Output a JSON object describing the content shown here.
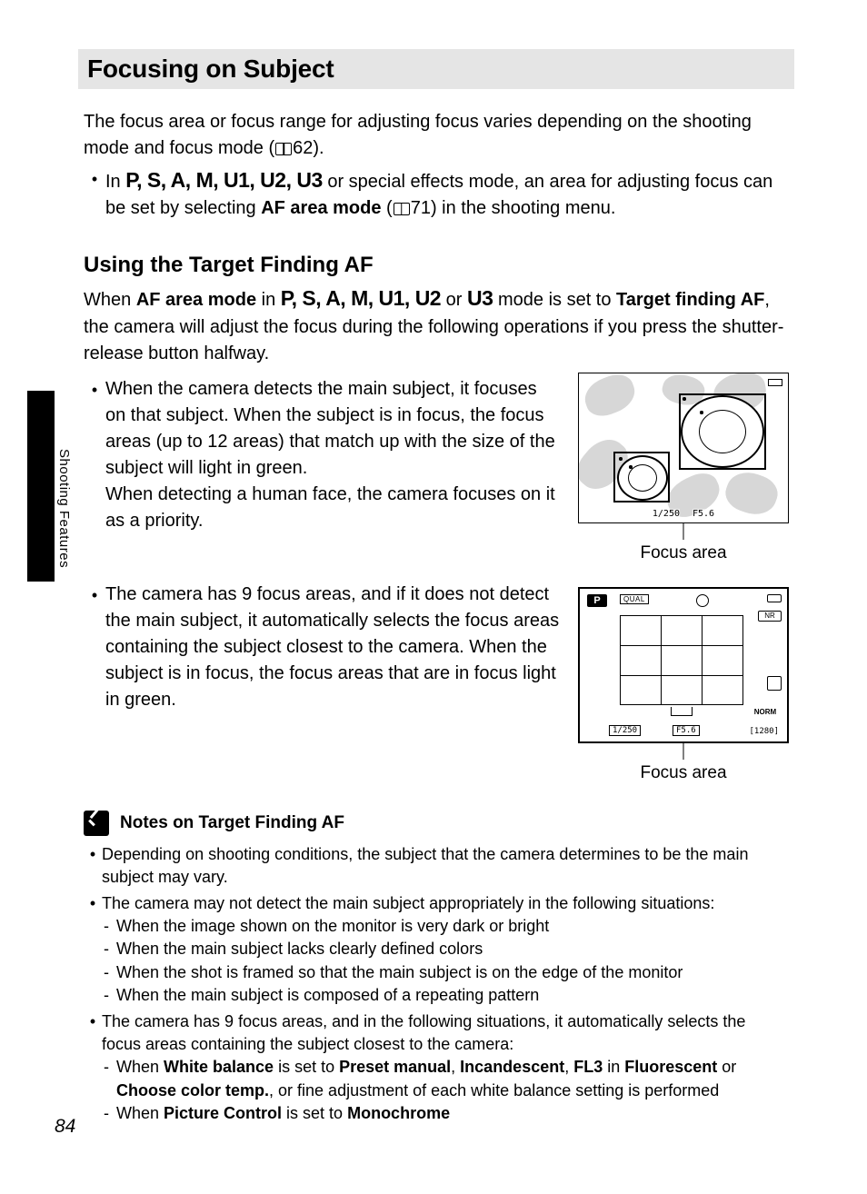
{
  "page_number": "84",
  "side_label": "Shooting Features",
  "title": "Focusing on Subject",
  "intro_a": "The focus area or focus range for adjusting focus varies depending on the shooting mode and focus mode (",
  "intro_ref1": "62).",
  "modes_bullet_lead": "In ",
  "mode_list_text": "P, S, A, M, U1, U2, U3",
  "modes_bullet_tail_a": " or special effects mode, an area for adjusting focus can be set by selecting ",
  "af_area_mode": "AF area mode",
  "modes_bullet_tail_b": " (",
  "intro_ref2": "71) in the shooting menu.",
  "subhead": "Using the Target Finding AF",
  "tf_para_a": "When ",
  "tf_para_b": " in ",
  "tf_mode_list": "P, S, A, M, U1, U2",
  "tf_para_c": " or ",
  "u3": "U3",
  "tf_para_d": " mode is set to ",
  "target_finding": "Target finding AF",
  "tf_para_e": ", the camera will adjust the focus during the following operations if you press the shutter-release button halfway.",
  "b1": "When the camera detects the main subject, it focuses on that subject. When the subject is in focus, the focus areas (up to 12 areas) that match up with the size of the subject will light in green.\nWhen detecting a human face, the camera focuses on it as a priority.",
  "b2": "The camera has 9 focus areas, and if it does not detect the main subject, it automatically selects the focus areas containing the subject closest to the camera. When the subject is in focus, the focus areas that are in focus light in green.",
  "focus_area_label": "Focus area",
  "lcd1": {
    "shutter": "1/250",
    "fstop": "F5.6"
  },
  "lcd2": {
    "mode": "P",
    "qual": "QUAL",
    "nr": "NR",
    "norm": "NORM",
    "shutter": "1/250",
    "fstop": "F5.6",
    "shots": "[1280]"
  },
  "notes_title": "Notes on Target Finding AF",
  "n1": "Depending on shooting conditions, the subject that the camera determines to be the main subject may vary.",
  "n2": "The camera may not detect the main subject appropriately in the following situations:",
  "n2s": [
    "When the image shown on the monitor is very dark or bright",
    "When the main subject lacks clearly defined colors",
    "When the shot is framed so that the main subject is on the edge of the monitor",
    "When the main subject is composed of a repeating pattern"
  ],
  "n3": "The camera has 9 focus areas, and in the following situations, it automatically selects the focus areas containing the subject closest to the camera:",
  "n3s1_a": "When ",
  "wb": "White balance",
  "n3s1_b": " is set to ",
  "pm": "Preset manual",
  "comma": ", ",
  "incan": "Incandescent",
  "fl3": "FL3",
  "n3s1_c": " in ",
  "fluor": "Fluorescent",
  "n3s1_d": " or ",
  "cct": "Choose color temp.",
  "n3s1_e": ", or fine adjustment of each white balance setting is performed",
  "n3s2_a": "When ",
  "pc": "Picture Control",
  "n3s2_b": " is set to ",
  "mono": "Monochrome"
}
